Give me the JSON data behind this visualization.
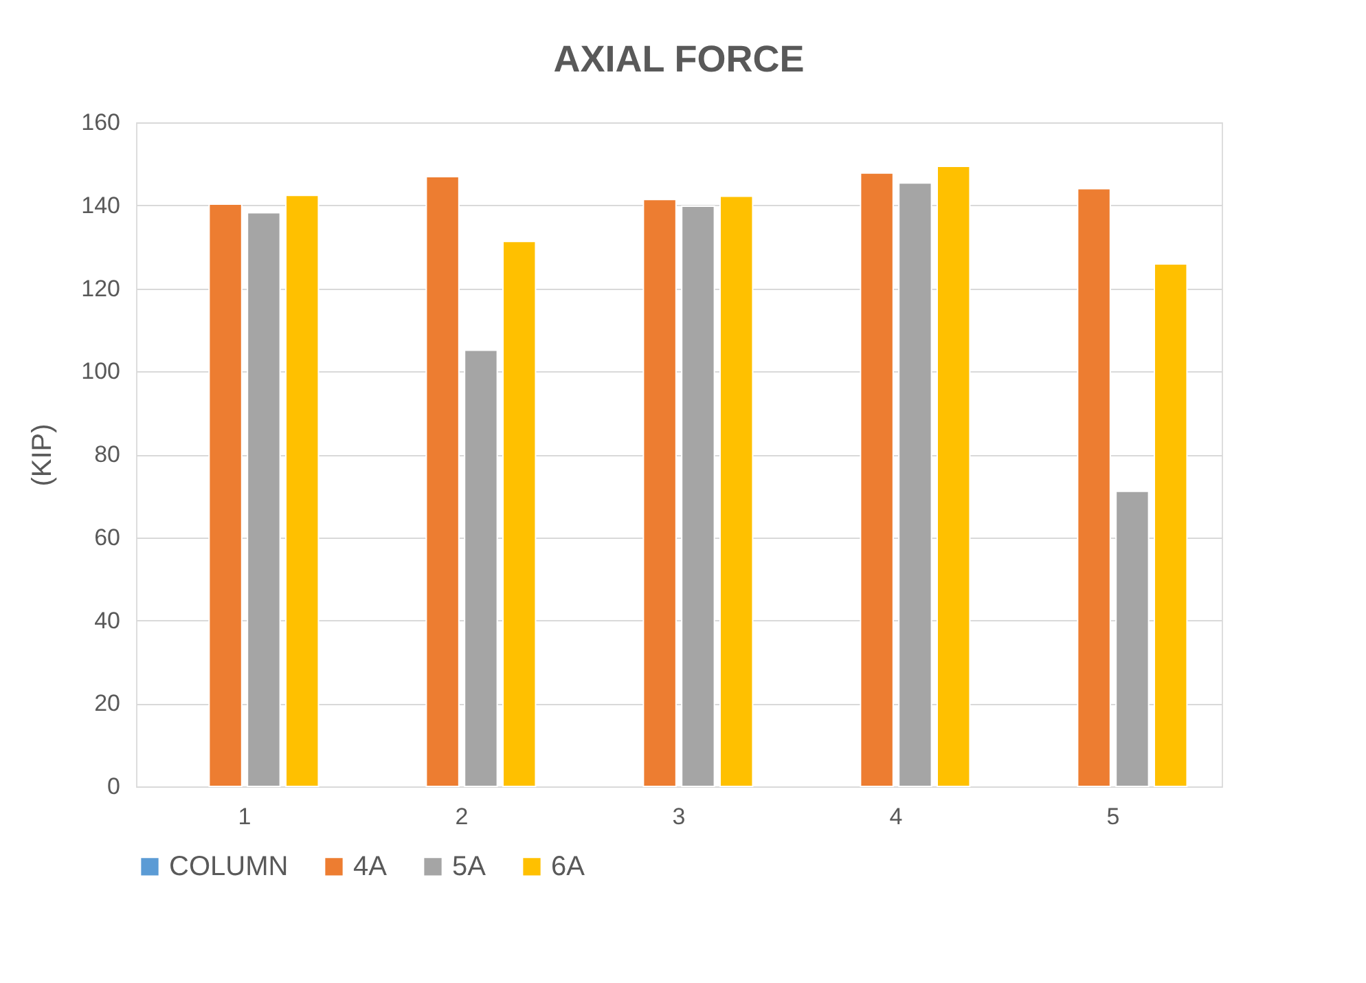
{
  "chart_data": {
    "type": "bar",
    "title": "AXIAL FORCE",
    "ylabel": "(KIP)",
    "categories": [
      "1",
      "2",
      "3",
      "4",
      "5"
    ],
    "series": [
      {
        "name": "COLUMN",
        "color": "#5b9bd5",
        "values": [
          null,
          null,
          null,
          null,
          null
        ]
      },
      {
        "name": "4A",
        "color": "#ed7d31",
        "values": [
          140.3,
          146.9,
          141.4,
          147.8,
          144.0
        ]
      },
      {
        "name": "5A",
        "color": "#a5a5a5",
        "values": [
          138.2,
          105.1,
          139.8,
          145.4,
          71.1
        ]
      },
      {
        "name": "6A",
        "color": "#ffc000",
        "values": [
          142.4,
          131.3,
          142.2,
          149.4,
          125.9
        ]
      }
    ],
    "ylim": [
      0,
      160
    ],
    "yticks": [
      0,
      20,
      40,
      60,
      80,
      100,
      120,
      140,
      160
    ],
    "grid": "y",
    "legend": "bottom"
  }
}
